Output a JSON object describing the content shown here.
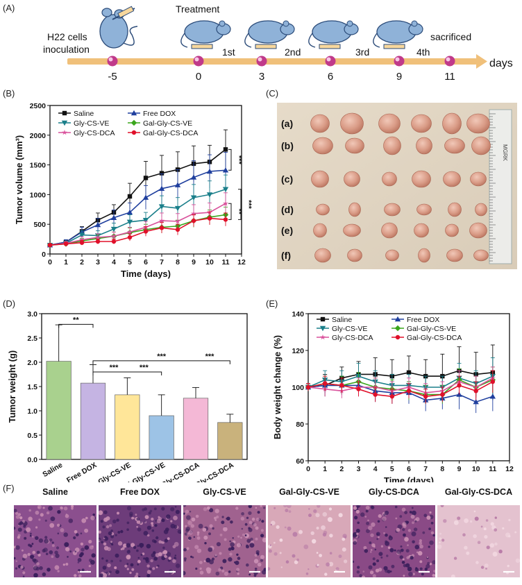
{
  "panels": {
    "A": "(A)",
    "B": "(B)",
    "C": "(C)",
    "D": "(D)",
    "E": "(E)",
    "F": "(F)"
  },
  "timeline": {
    "left_text": [
      "H22 cells",
      "inoculation"
    ],
    "treatment_title": "Treatment",
    "day_ticks": [
      "-5",
      "0",
      "3",
      "6",
      "9",
      "11"
    ],
    "dose_labels": [
      "1st",
      "2nd",
      "3rd",
      "4th"
    ],
    "end_text": "sacrificed",
    "axis_unit": "days"
  },
  "colors": {
    "saline": "#111111",
    "free_dox": "#1f3f9e",
    "gly_cs_ve": "#1a7f8a",
    "gal_gly_cs_ve": "#3aa61c",
    "gly_cs_dca": "#d9519b",
    "gal_gly_cs_dca": "#e0102a",
    "timeline_bar": "#f0c07a",
    "timeline_dot": "#c03a8a"
  },
  "photo": {
    "row_labels": [
      "(a)",
      "(b)",
      "(c)",
      "(d)",
      "(e)",
      "(f)"
    ],
    "tumors_per_row": [
      6,
      6,
      6,
      6,
      6,
      6
    ],
    "ruler_text": "MGRK"
  },
  "histology": {
    "titles": [
      "Saline",
      "Free DOX",
      "Gly-CS-VE",
      "Gal-Gly-CS-VE",
      "Gly-CS-DCA",
      "Gal-Gly-CS-DCA"
    ],
    "tones": [
      "#8b4f8e",
      "#6d3c7a",
      "#a0628f",
      "#d8a8b8",
      "#8a4a86",
      "#e4c2cf"
    ]
  },
  "chart_data": [
    {
      "id": "B",
      "type": "line",
      "title": "",
      "xlabel": "Time (days)",
      "ylabel": "Tumor volume (mm³)",
      "xlim": [
        0,
        12
      ],
      "ylim": [
        0,
        2500
      ],
      "xticks": [
        0,
        1,
        2,
        3,
        4,
        5,
        6,
        7,
        8,
        9,
        10,
        11,
        12
      ],
      "yticks": [
        0,
        500,
        1000,
        1500,
        2000,
        2500
      ],
      "x": [
        0,
        1,
        2,
        3,
        4,
        5,
        6,
        7,
        8,
        9,
        10,
        11
      ],
      "legend": "top-left",
      "significance": [
        "***",
        "***",
        "**"
      ],
      "series": [
        {
          "name": "Saline",
          "marker": "square",
          "color": "#111111",
          "values": [
            150,
            200,
            380,
            570,
            700,
            970,
            1280,
            1360,
            1420,
            1520,
            1550,
            1760
          ],
          "err": [
            30,
            40,
            80,
            120,
            130,
            220,
            280,
            300,
            300,
            300,
            280,
            330
          ]
        },
        {
          "name": "Free DOX",
          "marker": "triangle-up",
          "color": "#1f3f9e",
          "values": [
            150,
            200,
            370,
            490,
            610,
            700,
            950,
            1100,
            1160,
            1290,
            1390,
            1410
          ],
          "err": [
            30,
            40,
            80,
            110,
            130,
            160,
            200,
            250,
            260,
            280,
            280,
            300
          ]
        },
        {
          "name": "Gly-CS-VE",
          "marker": "triangle-down",
          "color": "#1a7f8a",
          "values": [
            150,
            180,
            320,
            310,
            420,
            540,
            570,
            800,
            770,
            950,
            1000,
            1090
          ],
          "err": [
            30,
            40,
            70,
            80,
            100,
            120,
            130,
            180,
            180,
            220,
            230,
            240
          ]
        },
        {
          "name": "Gal-Gly-CS-VE",
          "marker": "diamond",
          "color": "#3aa61c",
          "values": [
            150,
            170,
            220,
            260,
            300,
            360,
            410,
            450,
            470,
            560,
            620,
            660
          ],
          "err": [
            20,
            30,
            40,
            60,
            70,
            80,
            90,
            100,
            100,
            110,
            120,
            130
          ]
        },
        {
          "name": "Gly-CS-DCA",
          "marker": "star",
          "color": "#d9519b",
          "values": [
            150,
            180,
            240,
            280,
            300,
            370,
            450,
            560,
            550,
            680,
            700,
            850
          ],
          "err": [
            20,
            30,
            50,
            60,
            70,
            80,
            100,
            130,
            130,
            150,
            160,
            180
          ]
        },
        {
          "name": "Gal-Gly-CS-DCA",
          "marker": "circle",
          "color": "#e0102a",
          "values": [
            150,
            170,
            190,
            210,
            210,
            280,
            380,
            440,
            410,
            560,
            600,
            580
          ],
          "err": [
            20,
            30,
            40,
            40,
            40,
            60,
            80,
            90,
            90,
            100,
            110,
            110
          ]
        }
      ]
    },
    {
      "id": "D",
      "type": "bar",
      "xlabel": "",
      "ylabel": "Tumor weight (g)",
      "ylim": [
        0,
        3.0
      ],
      "yticks": [
        0.0,
        0.5,
        1.0,
        1.5,
        2.0,
        2.5,
        3.0
      ],
      "categories": [
        "Saline",
        "Free DOX",
        "Gly-CS-VE",
        "Gal-Gly-CS-VE",
        "Gly-CS-DCA",
        "Gal-Gly-CS-DCA"
      ],
      "values": [
        2.02,
        1.57,
        1.33,
        0.9,
        1.26,
        0.76
      ],
      "errors": [
        0.75,
        0.38,
        0.35,
        0.43,
        0.22,
        0.17
      ],
      "bar_colors": [
        "#a9d18e",
        "#c5b4e3",
        "#ffe699",
        "#9dc3e6",
        "#f4b8d6",
        "#c9b27c"
      ],
      "significance": [
        {
          "from": 0,
          "to": 1,
          "label": "**"
        },
        {
          "from": 1,
          "to": 3,
          "label": "***"
        },
        {
          "from": 1,
          "to": 2,
          "label": "***"
        },
        {
          "from": 1,
          "to": 4,
          "label": "***"
        },
        {
          "from": 4,
          "to": 5,
          "label": "***"
        }
      ]
    },
    {
      "id": "E",
      "type": "line",
      "xlabel": "Time (days)",
      "ylabel": "Body weight change (%)",
      "xlim": [
        0,
        12
      ],
      "ylim": [
        60,
        140
      ],
      "xticks": [
        0,
        1,
        2,
        3,
        4,
        5,
        6,
        7,
        8,
        9,
        10,
        11,
        12
      ],
      "yticks": [
        60,
        80,
        100,
        120,
        140
      ],
      "x": [
        0,
        1,
        2,
        3,
        4,
        5,
        6,
        7,
        8,
        9,
        10,
        11
      ],
      "legend": "top",
      "series": [
        {
          "name": "Saline",
          "marker": "square",
          "color": "#111111",
          "values": [
            100,
            101,
            105,
            107,
            107,
            106,
            108,
            106,
            106,
            109,
            107,
            108
          ],
          "err": [
            2,
            6,
            6,
            7,
            9,
            9,
            9,
            9,
            12,
            13,
            12,
            15
          ]
        },
        {
          "name": "Free DOX",
          "marker": "triangle-up",
          "color": "#1f3f9e",
          "values": [
            100,
            101,
            101,
            101,
            98,
            97,
            97,
            93,
            94,
            96,
            92,
            95
          ],
          "err": [
            2,
            4,
            5,
            6,
            6,
            6,
            6,
            6,
            6,
            8,
            6,
            8
          ]
        },
        {
          "name": "Gly-CS-VE",
          "marker": "triangle-down",
          "color": "#1a7f8a",
          "values": [
            100,
            104,
            103,
            106,
            103,
            101,
            101,
            100,
            100,
            105,
            102,
            106
          ],
          "err": [
            2,
            5,
            6,
            7,
            6,
            6,
            6,
            6,
            6,
            8,
            7,
            10
          ]
        },
        {
          "name": "Gal-Gly-CS-VE",
          "marker": "diamond",
          "color": "#3aa61c",
          "values": [
            100,
            102,
            101,
            103,
            100,
            99,
            98,
            96,
            96,
            104,
            100,
            104
          ],
          "err": [
            2,
            4,
            5,
            5,
            5,
            5,
            5,
            5,
            5,
            6,
            6,
            7
          ]
        },
        {
          "name": "Gly-CS-DCA",
          "marker": "star",
          "color": "#d9519b",
          "values": [
            100,
            99,
            98,
            100,
            100,
            98,
            100,
            97,
            98,
            103,
            100,
            105
          ],
          "err": [
            2,
            4,
            4,
            5,
            5,
            5,
            5,
            5,
            5,
            6,
            6,
            6
          ]
        },
        {
          "name": "Gal-Gly-CS-DCA",
          "marker": "circle",
          "color": "#e0102a",
          "values": [
            100,
            102,
            101,
            99,
            96,
            95,
            98,
            95,
            96,
            101,
            98,
            103
          ],
          "err": [
            2,
            4,
            4,
            4,
            4,
            4,
            4,
            4,
            4,
            5,
            5,
            6
          ]
        }
      ]
    }
  ]
}
